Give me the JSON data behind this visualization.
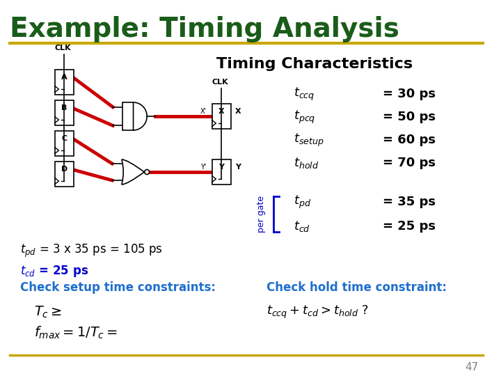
{
  "title": "Example: Timing Analysis",
  "title_color": "#1a5c1a",
  "title_fontsize": 28,
  "separator_color": "#c8a800",
  "bg_color": "#ffffff",
  "subtitle": "Timing Characteristics",
  "timing_chars": [
    {
      "label": "t_{ccq}",
      "value": "= 30 ps"
    },
    {
      "label": "t_{pcq}",
      "value": "= 50 ps"
    },
    {
      "label": "t_{setup}",
      "value": "= 60 ps"
    },
    {
      "label": "t_{hold}",
      "value": "= 70 ps"
    }
  ],
  "per_gate": [
    {
      "label": "t_{pd}",
      "value": "= 35 ps"
    },
    {
      "label": "t_{cd}",
      "value": "= 25 ps"
    }
  ],
  "per_gate_label": "per gate",
  "per_gate_color": "#0000cc",
  "bottom_left_lines": [
    {
      "text": "t_{pd} = 3 x 35 ps = 105 ps",
      "color": "#000000",
      "fontsize": 13
    },
    {
      "text": "t_{cd} = 25 ps",
      "color": "#0000cc",
      "fontsize": 13
    }
  ],
  "check_setup_label": "Check setup time constraints:",
  "check_hold_label": "Check hold time constraint:",
  "check_color": "#1e6fcc",
  "tc_line": "T_{c} ≥",
  "fmax_line": "f_{max} = 1/T_{c} =",
  "hold_formula": "t_{ccq} + t_{cd} > t_{hold} ?",
  "page_num": "47",
  "footer_color": "#c8a800"
}
